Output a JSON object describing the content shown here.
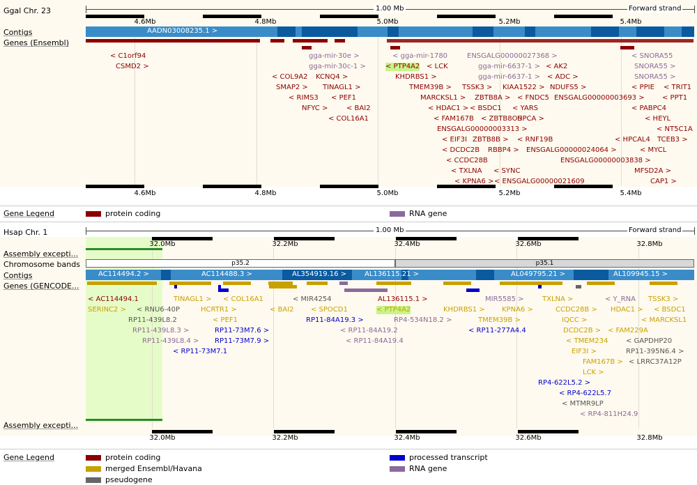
{
  "colors": {
    "protein_coding": "#8b0000",
    "rna": "#8a6a9a",
    "merged": "#c8a000",
    "processed": "#0000cc",
    "pseudo": "#666666",
    "contig": "#3a8cc9",
    "contig_dark": "#0b5aa0",
    "highlight": "#c8f58a"
  },
  "top": {
    "species_label": "Ggal Chr. 23",
    "scale_label": "1.00 Mb",
    "strand_label": "Forward strand",
    "ticks": [
      "4.6Mb",
      "4.8Mb",
      "5.0Mb",
      "5.2Mb",
      "5.4Mb"
    ],
    "contigs_label": "Contigs",
    "contig_name": "AADN03008235.1 >",
    "genes_label": "Genes (Ensembl)",
    "genes": [
      {
        "t": "< C1orf94",
        "c": "pc"
      },
      {
        "t": "CSMD2 >",
        "c": "pc"
      },
      {
        "t": "gga-mir-30e >",
        "c": "rna"
      },
      {
        "t": "gga-mir-30c-1 >",
        "c": "rna"
      },
      {
        "t": "< gga-mir-1780",
        "c": "rna"
      },
      {
        "t": "ENSGALG00000027368 >",
        "c": "rna"
      },
      {
        "t": "< PTP4A2",
        "c": "pc"
      },
      {
        "t": "< LCK",
        "c": "pc"
      },
      {
        "t": "gga-mir-6637-1 >",
        "c": "rna"
      },
      {
        "t": "< AK2",
        "c": "pc"
      },
      {
        "t": "gga-mir-6637-1 >",
        "c": "rna"
      },
      {
        "t": "< ADC >",
        "c": "pc"
      },
      {
        "t": "< COL9A2",
        "c": "pc"
      },
      {
        "t": "KCNQ4 >",
        "c": "pc"
      },
      {
        "t": "KHDRBS1 >",
        "c": "pc"
      },
      {
        "t": "SMAP2 >",
        "c": "pc"
      },
      {
        "t": "TINAGL1 >",
        "c": "pc"
      },
      {
        "t": "TMEM39B >",
        "c": "pc"
      },
      {
        "t": "TSSK3 >",
        "c": "pc"
      },
      {
        "t": "KIAA1522 >",
        "c": "pc"
      },
      {
        "t": "NDUFS5 >",
        "c": "pc"
      },
      {
        "t": "< RIMS3",
        "c": "pc"
      },
      {
        "t": "< PEF1",
        "c": "pc"
      },
      {
        "t": "MARCKSL1 >",
        "c": "pc"
      },
      {
        "t": "ZBTB8A >",
        "c": "pc"
      },
      {
        "t": "< FNDC5",
        "c": "pc"
      },
      {
        "t": "ENSGALG00000003693 >",
        "c": "pc"
      },
      {
        "t": "NFYC >",
        "c": "pc"
      },
      {
        "t": "< BAI2",
        "c": "pc"
      },
      {
        "t": "< HDAC1 >",
        "c": "pc"
      },
      {
        "t": "< BSDC1",
        "c": "pc"
      },
      {
        "t": "< YARS",
        "c": "pc"
      },
      {
        "t": "< COL16A1",
        "c": "pc"
      },
      {
        "t": "< FAM167B",
        "c": "pc"
      },
      {
        "t": "< ZBTB8OS",
        "c": "pc"
      },
      {
        "t": "HPCA >",
        "c": "pc"
      },
      {
        "t": "ENSGALG00000003313 >",
        "c": "pc"
      },
      {
        "t": "< EIF3I",
        "c": "pc"
      },
      {
        "t": "ZBTB8B >",
        "c": "pc"
      },
      {
        "t": "< RNF19B",
        "c": "pc"
      },
      {
        "t": "< DCDC2B",
        "c": "pc"
      },
      {
        "t": "RBBP4 >",
        "c": "pc"
      },
      {
        "t": "ENSGALG00000024064 >",
        "c": "pc"
      },
      {
        "t": "< CCDC28B",
        "c": "pc"
      },
      {
        "t": "ENSGALG00000003838 >",
        "c": "pc"
      },
      {
        "t": "< TXLNA",
        "c": "pc"
      },
      {
        "t": "< SYNC",
        "c": "pc"
      },
      {
        "t": "< KPNA6 >",
        "c": "pc"
      },
      {
        "t": "< ENSGALG00000021609",
        "c": "pc"
      },
      {
        "t": "< SNORA55",
        "c": "rna"
      },
      {
        "t": "SNORA55 >",
        "c": "rna"
      },
      {
        "t": "SNORA55 >",
        "c": "rna"
      },
      {
        "t": "< PPIE",
        "c": "pc"
      },
      {
        "t": "< TRIT1",
        "c": "pc"
      },
      {
        "t": "< PPT1",
        "c": "pc"
      },
      {
        "t": "< PABPC4",
        "c": "pc"
      },
      {
        "t": "< HEYL",
        "c": "pc"
      },
      {
        "t": "< NT5C1A",
        "c": "pc"
      },
      {
        "t": "< HPCAL4",
        "c": "pc"
      },
      {
        "t": "TCEB3 >",
        "c": "pc"
      },
      {
        "t": "< MYCL",
        "c": "pc"
      },
      {
        "t": "MFSD2A >",
        "c": "pc"
      },
      {
        "t": "CAP1 >",
        "c": "pc"
      }
    ],
    "legend_label": "Gene Legend",
    "legend": [
      {
        "label": "protein coding",
        "color": "#8b0000"
      },
      {
        "label": "RNA gene",
        "color": "#8a6a9a"
      }
    ]
  },
  "bottom": {
    "species_label": "Hsap Chr. 1",
    "scale_label": "1.00 Mb",
    "strand_label": "Forward strand",
    "ticks": [
      "32.0Mb",
      "32.2Mb",
      "32.4Mb",
      "32.6Mb",
      "32.8Mb"
    ],
    "assembly_label": "Assembly excepti...",
    "bands_label": "Chromosome bands",
    "bands": [
      "p35.2",
      "p35.1"
    ],
    "contigs_label": "Contigs",
    "contig_names": [
      "AC114494.2 >",
      "AC114488.3 >",
      "AL354919.16 >",
      "AL136115.21 >",
      "AL049795.21 >",
      "AL109945.15 >"
    ],
    "genes_label": "Genes (GENCODE...",
    "genes": [
      {
        "t": "< AC114494.1",
        "c": "pc"
      },
      {
        "t": "TINAGL1 >",
        "c": "mg"
      },
      {
        "t": "< COL16A1",
        "c": "mg"
      },
      {
        "t": "< MIR4254",
        "c": "ps"
      },
      {
        "t": "AL136115.1 >",
        "c": "pc"
      },
      {
        "t": "MIR5585 >",
        "c": "rna"
      },
      {
        "t": "TXLNA >",
        "c": "mg"
      },
      {
        "t": "< Y_RNA",
        "c": "rna"
      },
      {
        "t": "TSSK3 >",
        "c": "mg"
      },
      {
        "t": "SERINC2 >",
        "c": "mg"
      },
      {
        "t": "< RNU6-40P",
        "c": "ps"
      },
      {
        "t": "HCRTR1 >",
        "c": "mg"
      },
      {
        "t": "< BAI2",
        "c": "mg"
      },
      {
        "t": "< SPOCD1",
        "c": "mg"
      },
      {
        "t": "< PTP4A2",
        "c": "mg"
      },
      {
        "t": "KHDRBS1 >",
        "c": "mg"
      },
      {
        "t": "KPNA6 >",
        "c": "mg"
      },
      {
        "t": "CCDC28B >",
        "c": "mg"
      },
      {
        "t": "HDAC1 >",
        "c": "mg"
      },
      {
        "t": "< BSDC1",
        "c": "mg"
      },
      {
        "t": "RP11-439L8.2",
        "c": "ps"
      },
      {
        "t": "< PEF1",
        "c": "mg"
      },
      {
        "t": "RP11-84A19.3 >",
        "c": "pt"
      },
      {
        "t": "RP4-534N18.2 >",
        "c": "rna"
      },
      {
        "t": "TMEM39B >",
        "c": "mg"
      },
      {
        "t": "IQCC >",
        "c": "mg"
      },
      {
        "t": "< MARCKSL1",
        "c": "mg"
      },
      {
        "t": "RP11-439L8.3 >",
        "c": "rna"
      },
      {
        "t": "RP11-73M7.6 >",
        "c": "pt"
      },
      {
        "t": "< RP11-84A19.2",
        "c": "rna"
      },
      {
        "t": "< RP11-277A4.4",
        "c": "pt"
      },
      {
        "t": "DCDC2B >",
        "c": "mg"
      },
      {
        "t": "< FAM229A",
        "c": "mg"
      },
      {
        "t": "RP11-439L8.4 >",
        "c": "rna"
      },
      {
        "t": "RP11-73M7.9 >",
        "c": "pt"
      },
      {
        "t": "< RP11-84A19.4",
        "c": "rna"
      },
      {
        "t": "< TMEM234",
        "c": "mg"
      },
      {
        "t": "< GAPDHP20",
        "c": "ps"
      },
      {
        "t": "< RP11-73M7.1",
        "c": "pt"
      },
      {
        "t": "EIF3I >",
        "c": "mg"
      },
      {
        "t": "RP11-395N6.4 >",
        "c": "ps"
      },
      {
        "t": "FAM167B >",
        "c": "mg"
      },
      {
        "t": "< LRRC37A12P",
        "c": "ps"
      },
      {
        "t": "LCK >",
        "c": "mg"
      },
      {
        "t": "RP4-622L5.2 >",
        "c": "pt"
      },
      {
        "t": "< RP4-622L5.7",
        "c": "pt"
      },
      {
        "t": "< MTMR9LP",
        "c": "ps"
      },
      {
        "t": "< RP4-811H24.9",
        "c": "rna"
      }
    ],
    "legend_label": "Gene Legend",
    "legend": [
      {
        "label": "protein coding",
        "color": "#8b0000"
      },
      {
        "label": "processed transcript",
        "color": "#0000cc"
      },
      {
        "label": "merged Ensembl/Havana",
        "color": "#c8a000"
      },
      {
        "label": "RNA gene",
        "color": "#8a6a9a"
      },
      {
        "label": "pseudogene",
        "color": "#666666"
      }
    ]
  }
}
